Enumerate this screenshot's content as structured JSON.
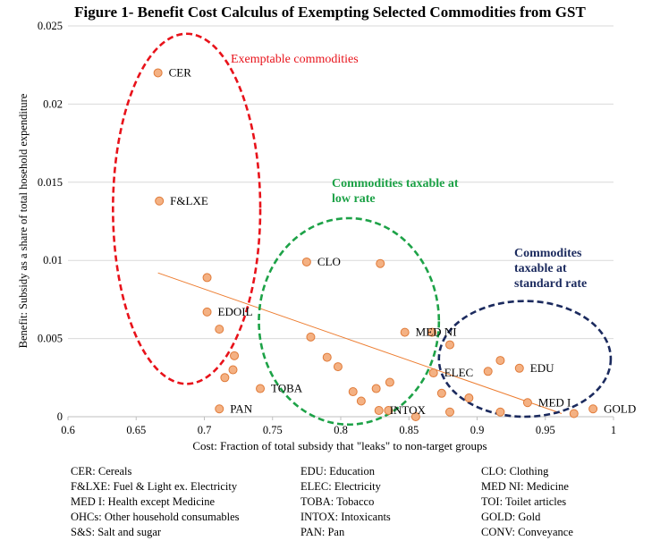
{
  "title": "Figure 1- Benefit Cost Calculus of Exempting Selected Commodities from GST",
  "chart_data": {
    "type": "scatter",
    "xlabel": "Cost: Fraction of total subsidy that \"leaks\" to non-target groups",
    "ylabel": "Benefit: Subsidy as a share of total hosehold expenditure",
    "xlim": [
      0.6,
      1
    ],
    "ylim": [
      0,
      0.025
    ],
    "x_ticks": [
      "0.6",
      "0.65",
      "0.7",
      "0.75",
      "0.8",
      "0.85",
      "0.9",
      "0.95",
      "1"
    ],
    "y_ticks": [
      "0",
      "0.005",
      "0.01",
      "0.015",
      "0.02",
      "0.025"
    ],
    "grid": "horizontal",
    "marker_color": "#F4B183",
    "marker_edge": "#E07B39",
    "trendline_color": "#ED7D31",
    "trendline": {
      "x": [
        0.666,
        0.962
      ],
      "y": [
        0.0092,
        0.0002
      ]
    },
    "points": [
      {
        "x": 0.666,
        "y": 0.022,
        "label": "CER"
      },
      {
        "x": 0.667,
        "y": 0.0138,
        "label": "F&LXE"
      },
      {
        "x": 0.775,
        "y": 0.0099,
        "label": "CLO"
      },
      {
        "x": 0.829,
        "y": 0.0098,
        "label": ""
      },
      {
        "x": 0.702,
        "y": 0.0089,
        "label": ""
      },
      {
        "x": 0.702,
        "y": 0.0067,
        "label": "EDOIL"
      },
      {
        "x": 0.711,
        "y": 0.0056,
        "label": ""
      },
      {
        "x": 0.722,
        "y": 0.0039,
        "label": ""
      },
      {
        "x": 0.721,
        "y": 0.003,
        "label": ""
      },
      {
        "x": 0.715,
        "y": 0.0025,
        "label": ""
      },
      {
        "x": 0.741,
        "y": 0.0018,
        "label": "TOBA"
      },
      {
        "x": 0.711,
        "y": 0.0005,
        "label": "PAN"
      },
      {
        "x": 0.778,
        "y": 0.0051,
        "label": ""
      },
      {
        "x": 0.79,
        "y": 0.0038,
        "label": ""
      },
      {
        "x": 0.798,
        "y": 0.0032,
        "label": ""
      },
      {
        "x": 0.809,
        "y": 0.0016,
        "label": ""
      },
      {
        "x": 0.815,
        "y": 0.001,
        "label": ""
      },
      {
        "x": 0.826,
        "y": 0.0018,
        "label": ""
      },
      {
        "x": 0.836,
        "y": 0.0022,
        "label": ""
      },
      {
        "x": 0.828,
        "y": 0.0004,
        "label": "INTOX"
      },
      {
        "x": 0.835,
        "y": 0.0004,
        "label": ""
      },
      {
        "x": 0.847,
        "y": 0.0054,
        "label": "MED NI"
      },
      {
        "x": 0.867,
        "y": 0.0054,
        "label": ""
      },
      {
        "x": 0.855,
        "y": 0.0,
        "label": ""
      },
      {
        "x": 0.868,
        "y": 0.0028,
        "label": "ELEC"
      },
      {
        "x": 0.874,
        "y": 0.0015,
        "label": ""
      },
      {
        "x": 0.88,
        "y": 0.0046,
        "label": ""
      },
      {
        "x": 0.88,
        "y": 0.0003,
        "label": ""
      },
      {
        "x": 0.894,
        "y": 0.0012,
        "label": ""
      },
      {
        "x": 0.908,
        "y": 0.0029,
        "label": ""
      },
      {
        "x": 0.917,
        "y": 0.0036,
        "label": ""
      },
      {
        "x": 0.917,
        "y": 0.0003,
        "label": ""
      },
      {
        "x": 0.931,
        "y": 0.0031,
        "label": "EDU"
      },
      {
        "x": 0.937,
        "y": 0.0009,
        "label": "MED I"
      },
      {
        "x": 0.971,
        "y": 0.0002,
        "label": ""
      },
      {
        "x": 0.985,
        "y": 0.0005,
        "label": "GOLD"
      }
    ],
    "annotations": [
      {
        "text": "Exemptable commodities",
        "color": "#E8121A",
        "ellipse": {
          "cx": 0.687,
          "cy": 0.0133,
          "rx": 0.054,
          "ry": 0.0112
        }
      },
      {
        "text": "Commodities taxable at\nlow rate",
        "color": "#1DA247",
        "ellipse": {
          "cx": 0.806,
          "cy": 0.0061,
          "rx": 0.066,
          "ry": 0.0066
        }
      },
      {
        "text": "Commodites\ntaxable at\nstandard rate",
        "color": "#1B2A5E",
        "ellipse": {
          "cx": 0.935,
          "cy": 0.0037,
          "rx": 0.063,
          "ry": 0.0037
        }
      }
    ]
  },
  "legend": [
    [
      "CER: Cereals",
      "F&LXE: Fuel & Light ex. Electricity",
      "MED I: Health except Medicine",
      "OHCs: Other household consumables",
      "S&S: Salt and sugar"
    ],
    [
      "EDU: Education",
      "ELEC: Electricity",
      "TOBA: Tobacco",
      "INTOX: Intoxicants",
      "PAN: Pan"
    ],
    [
      "CLO: Clothing",
      "MED NI: Medicine",
      "TOI: Toilet articles",
      "GOLD: Gold",
      "CONV: Conveyance"
    ]
  ]
}
